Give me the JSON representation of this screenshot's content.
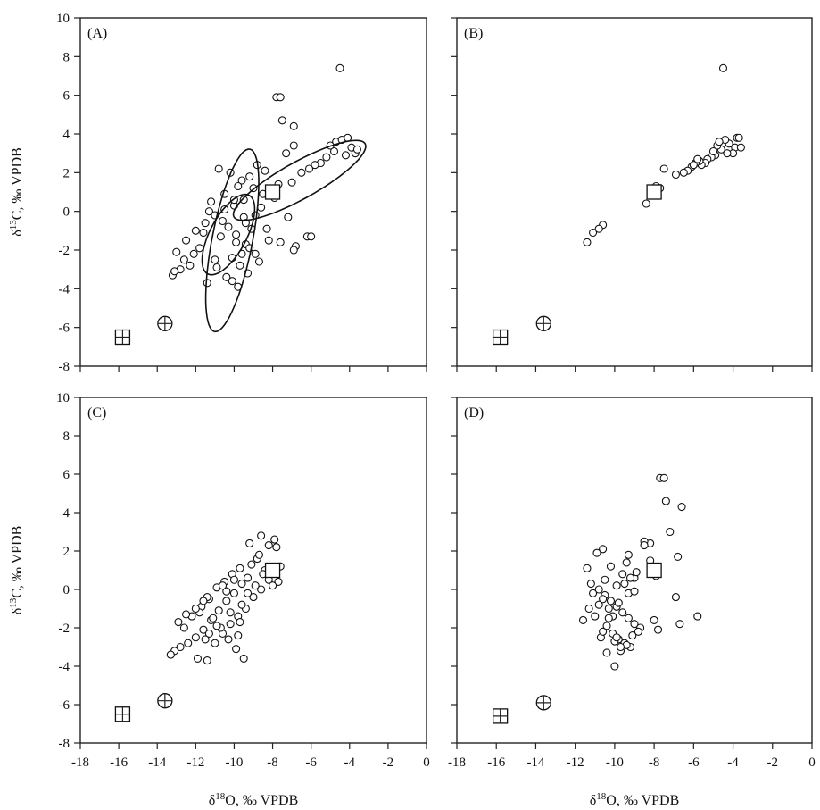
{
  "chart_data": [
    {
      "type": "scatter",
      "panel_label": "(A)",
      "xlim": [
        -18,
        0
      ],
      "ylim": [
        -8,
        10
      ],
      "x_ticks": [
        -18,
        -16,
        -14,
        -12,
        -10,
        -8,
        -6,
        -4,
        -2,
        0
      ],
      "y_ticks": [
        -8,
        -6,
        -4,
        -2,
        0,
        2,
        4,
        6,
        8,
        10
      ],
      "show_x_tick_labels": false,
      "show_y_tick_labels": true,
      "ylabel": "δ13C, ‰ VPDB",
      "xlabel": "",
      "grid": false,
      "reference_points": [
        {
          "symbol": "square-cross",
          "x": -15.8,
          "y": -6.5
        },
        {
          "symbol": "circle-cross",
          "x": -13.6,
          "y": -5.8
        },
        {
          "symbol": "square",
          "x": -8.0,
          "y": 1.0
        }
      ],
      "ellipses": [
        {
          "cx": -10.3,
          "cy": -1.2,
          "rx": 2.3,
          "ry": 0.95,
          "angle_deg": 62
        },
        {
          "cx": -10.1,
          "cy": -1.5,
          "rx": 4.8,
          "ry": 1.05,
          "angle_deg": 79
        },
        {
          "cx": -6.6,
          "cy": 1.6,
          "rx": 3.9,
          "ry": 0.95,
          "angle_deg": 29
        }
      ],
      "series": [
        {
          "x": [
            -4.5,
            -7.8,
            -7.6,
            -7.5,
            -6.9,
            -6.9,
            -7.3,
            -5.0,
            -4.7,
            -4.4,
            -4.1,
            -3.9,
            -3.7,
            -3.6,
            -4.2,
            -4.8,
            -5.2,
            -5.5,
            -5.8,
            -6.1,
            -6.5,
            -7.0,
            -7.7,
            -8.0,
            -8.5,
            -9.0,
            -9.5,
            -10.0,
            -10.5,
            -11.0,
            -11.5,
            -12.0,
            -12.5,
            -13.0,
            -10.8,
            -10.2,
            -9.6,
            -9.2,
            -8.8,
            -8.4,
            -11.2,
            -10.6,
            -9.9,
            -9.4,
            -8.9,
            -11.8,
            -12.3,
            -12.8,
            -13.2,
            -11.4,
            -10.9,
            -10.4,
            -9.8,
            -9.3,
            -8.7,
            -8.2,
            -7.6,
            -10.1,
            -9.7,
            -9.1,
            -10.7,
            -11.6,
            -12.1,
            -11.0,
            -9.5,
            -8.6,
            -7.2,
            -6.8,
            -6.2,
            -10.3,
            -9.9,
            -9.6,
            -10.0,
            -9.4,
            -8.9,
            -11.3,
            -10.5,
            -9.8,
            -12.6,
            -13.1,
            -10.1,
            -9.2,
            -8.3,
            -7.9,
            -6.9,
            -6.0
          ],
          "y": [
            7.4,
            5.9,
            5.9,
            4.7,
            4.4,
            3.4,
            3.0,
            3.4,
            3.6,
            3.7,
            3.8,
            3.3,
            3.0,
            3.2,
            2.9,
            3.1,
            2.8,
            2.5,
            2.4,
            2.2,
            2.0,
            1.5,
            1.4,
            0.8,
            0.9,
            1.2,
            0.6,
            0.3,
            0.1,
            -0.2,
            -0.6,
            -1.0,
            -1.5,
            -2.1,
            2.2,
            2.0,
            1.6,
            1.8,
            2.4,
            2.1,
            0.5,
            -0.5,
            -1.2,
            -1.7,
            -2.2,
            -1.9,
            -2.8,
            -3.0,
            -3.3,
            -3.7,
            -2.9,
            -3.4,
            -3.9,
            -3.2,
            -2.6,
            -1.5,
            -1.6,
            -2.4,
            -2.8,
            -0.9,
            -1.3,
            -1.1,
            -2.2,
            -2.5,
            -0.3,
            0.2,
            -0.3,
            -1.8,
            -1.3,
            -0.8,
            -1.6,
            -2.2,
            0.6,
            -0.6,
            -0.2,
            0.0,
            0.9,
            1.3,
            -2.5,
            -3.1,
            -3.6,
            -1.9,
            -0.9,
            0.7,
            -2.0,
            -1.3
          ]
        }
      ]
    },
    {
      "type": "scatter",
      "panel_label": "(B)",
      "xlim": [
        -18,
        0
      ],
      "ylim": [
        -8,
        10
      ],
      "x_ticks": [
        -18,
        -16,
        -14,
        -12,
        -10,
        -8,
        -6,
        -4,
        -2,
        0
      ],
      "y_ticks": [
        -8,
        -6,
        -4,
        -2,
        0,
        2,
        4,
        6,
        8,
        10
      ],
      "show_x_tick_labels": false,
      "show_y_tick_labels": false,
      "xlabel": "",
      "ylabel": "",
      "grid": false,
      "reference_points": [
        {
          "symbol": "square-cross",
          "x": -15.8,
          "y": -6.5
        },
        {
          "symbol": "circle-cross",
          "x": -13.6,
          "y": -5.8
        },
        {
          "symbol": "square",
          "x": -8.0,
          "y": 1.0
        }
      ],
      "series": [
        {
          "x": [
            -4.5,
            -3.8,
            -3.9,
            -3.6,
            -4.0,
            -4.3,
            -4.6,
            -4.8,
            -4.9,
            -5.1,
            -5.3,
            -5.4,
            -5.6,
            -5.7,
            -5.9,
            -6.1,
            -6.3,
            -6.5,
            -6.9,
            -7.5,
            -7.7,
            -7.9,
            -8.1,
            -8.4,
            -10.6,
            -10.8,
            -11.1,
            -11.4,
            -4.2,
            -4.4,
            -5.0,
            -5.8,
            -6.0,
            -4.7,
            -3.7
          ],
          "y": [
            7.4,
            3.8,
            3.3,
            3.3,
            3.0,
            3.0,
            3.2,
            3.4,
            2.9,
            2.8,
            2.7,
            2.5,
            2.4,
            2.6,
            2.5,
            2.3,
            2.1,
            2.0,
            1.9,
            2.2,
            1.2,
            1.3,
            0.9,
            0.4,
            -0.7,
            -0.9,
            -1.1,
            -1.6,
            3.5,
            3.7,
            3.1,
            2.7,
            2.4,
            3.6,
            3.8
          ]
        }
      ]
    },
    {
      "type": "scatter",
      "panel_label": "(C)",
      "xlim": [
        -18,
        0
      ],
      "ylim": [
        -8,
        10
      ],
      "x_ticks": [
        -18,
        -16,
        -14,
        -12,
        -10,
        -8,
        -6,
        -4,
        -2,
        0
      ],
      "y_ticks": [
        -8,
        -6,
        -4,
        -2,
        0,
        2,
        4,
        6,
        8,
        10
      ],
      "show_x_tick_labels": true,
      "show_y_tick_labels": true,
      "xlabel": "δ18O, ‰ VPDB",
      "ylabel": "δ13C, ‰ VPDB",
      "grid": false,
      "reference_points": [
        {
          "symbol": "square-cross",
          "x": -15.8,
          "y": -6.5
        },
        {
          "symbol": "circle-cross",
          "x": -13.6,
          "y": -5.8
        },
        {
          "symbol": "square",
          "x": -8.0,
          "y": 1.0
        }
      ],
      "series": [
        {
          "x": [
            -8.6,
            -8.2,
            -7.9,
            -7.6,
            -9.2,
            -8.8,
            -8.4,
            -9.6,
            -10.0,
            -10.4,
            -10.8,
            -11.2,
            -11.6,
            -12.0,
            -12.4,
            -12.8,
            -13.1,
            -13.3,
            -11.9,
            -11.4,
            -11.0,
            -10.6,
            -10.2,
            -9.8,
            -9.4,
            -9.0,
            -8.6,
            -8.2,
            -12.2,
            -11.7,
            -11.3,
            -10.9,
            -10.5,
            -10.1,
            -9.7,
            -9.3,
            -8.9,
            -11.5,
            -10.7,
            -10.3,
            -9.9,
            -9.5,
            -12.6,
            -12.9,
            -11.8,
            -11.1,
            -10.4,
            -9.6,
            -9.8,
            -10.2,
            -11.4,
            -12.5,
            -7.7,
            -8.0,
            -8.7,
            -9.1,
            -10.0,
            -10.6,
            -11.6,
            -12.0,
            -9.3,
            -8.5,
            -7.8,
            -10.9,
            -11.3,
            -9.7
          ],
          "y": [
            2.8,
            2.3,
            2.6,
            1.2,
            2.4,
            1.6,
            1.0,
            0.3,
            -0.2,
            -0.6,
            -1.1,
            -1.6,
            -2.1,
            -2.5,
            -2.8,
            -3.0,
            -3.2,
            -3.4,
            -3.6,
            -3.7,
            -2.8,
            -2.3,
            -1.8,
            -1.4,
            -1.0,
            -0.4,
            0.0,
            0.5,
            -1.4,
            -0.9,
            -0.5,
            0.1,
            0.4,
            0.8,
            1.1,
            0.6,
            0.2,
            -2.6,
            -2.0,
            -2.6,
            -3.1,
            -3.6,
            -2.0,
            -1.7,
            -1.2,
            -1.5,
            -0.1,
            -0.8,
            -2.4,
            -1.2,
            -0.4,
            -1.3,
            0.4,
            0.2,
            1.8,
            1.3,
            0.5,
            0.2,
            -0.6,
            -1.0,
            -0.2,
            0.8,
            2.2,
            -1.9,
            -2.3,
            -1.7
          ]
        }
      ]
    },
    {
      "type": "scatter",
      "panel_label": "(D)",
      "xlim": [
        -18,
        0
      ],
      "ylim": [
        -8,
        10
      ],
      "x_ticks": [
        -18,
        -16,
        -14,
        -12,
        -10,
        -8,
        -6,
        -4,
        -2,
        0
      ],
      "y_ticks": [
        -8,
        -6,
        -4,
        -2,
        0,
        2,
        4,
        6,
        8,
        10
      ],
      "show_x_tick_labels": true,
      "show_y_tick_labels": false,
      "xlabel": "δ18O, ‰ VPDB",
      "ylabel": "",
      "grid": false,
      "reference_points": [
        {
          "symbol": "square-cross",
          "x": -15.8,
          "y": -6.6
        },
        {
          "symbol": "circle-cross",
          "x": -13.6,
          "y": -5.9
        },
        {
          "symbol": "square",
          "x": -8.0,
          "y": 1.0
        }
      ],
      "series": [
        {
          "x": [
            -7.7,
            -7.5,
            -7.4,
            -6.6,
            -7.2,
            -6.8,
            -5.8,
            -6.9,
            -6.7,
            -7.8,
            -8.0,
            -8.2,
            -8.5,
            -9.3,
            -9.0,
            -10.6,
            -10.9,
            -11.4,
            -11.2,
            -10.8,
            -10.5,
            -10.2,
            -9.9,
            -9.6,
            -9.3,
            -9.0,
            -8.7,
            -10.1,
            -9.8,
            -9.5,
            -9.2,
            -10.4,
            -10.7,
            -11.0,
            -11.3,
            -11.6,
            -10.0,
            -9.7,
            -9.4,
            -9.1,
            -8.8,
            -10.3,
            -10.6,
            -9.9,
            -9.6,
            -10.2,
            -10.5,
            -9.3,
            -9.8,
            -10.1,
            -10.4,
            -9.5,
            -9.2,
            -9.7,
            -10.0,
            -10.3,
            -10.8,
            -11.1,
            -9.4,
            -8.9,
            -8.5,
            -8.2,
            -7.9,
            -10.6,
            -9.9,
            -9.0
          ],
          "y": [
            5.8,
            5.8,
            4.6,
            4.3,
            3.0,
            1.7,
            -1.4,
            -0.4,
            -1.8,
            -2.1,
            -1.6,
            2.4,
            2.5,
            1.8,
            0.6,
            2.1,
            1.9,
            1.1,
            0.3,
            0.0,
            -0.3,
            -0.6,
            -0.9,
            -1.2,
            -1.5,
            -1.8,
            -2.0,
            -2.3,
            -2.6,
            -2.8,
            -3.0,
            -3.3,
            -2.5,
            -1.4,
            -1.0,
            -1.6,
            -4.0,
            -3.2,
            -2.9,
            -2.4,
            -2.2,
            -1.0,
            -0.5,
            0.2,
            0.8,
            1.2,
            0.5,
            -0.2,
            -0.7,
            -1.4,
            -1.9,
            0.3,
            0.6,
            -3.0,
            -2.7,
            -1.5,
            -0.8,
            -0.2,
            1.4,
            0.9,
            2.3,
            1.5,
            0.7,
            -2.2,
            -2.5,
            -0.1
          ]
        }
      ]
    }
  ]
}
